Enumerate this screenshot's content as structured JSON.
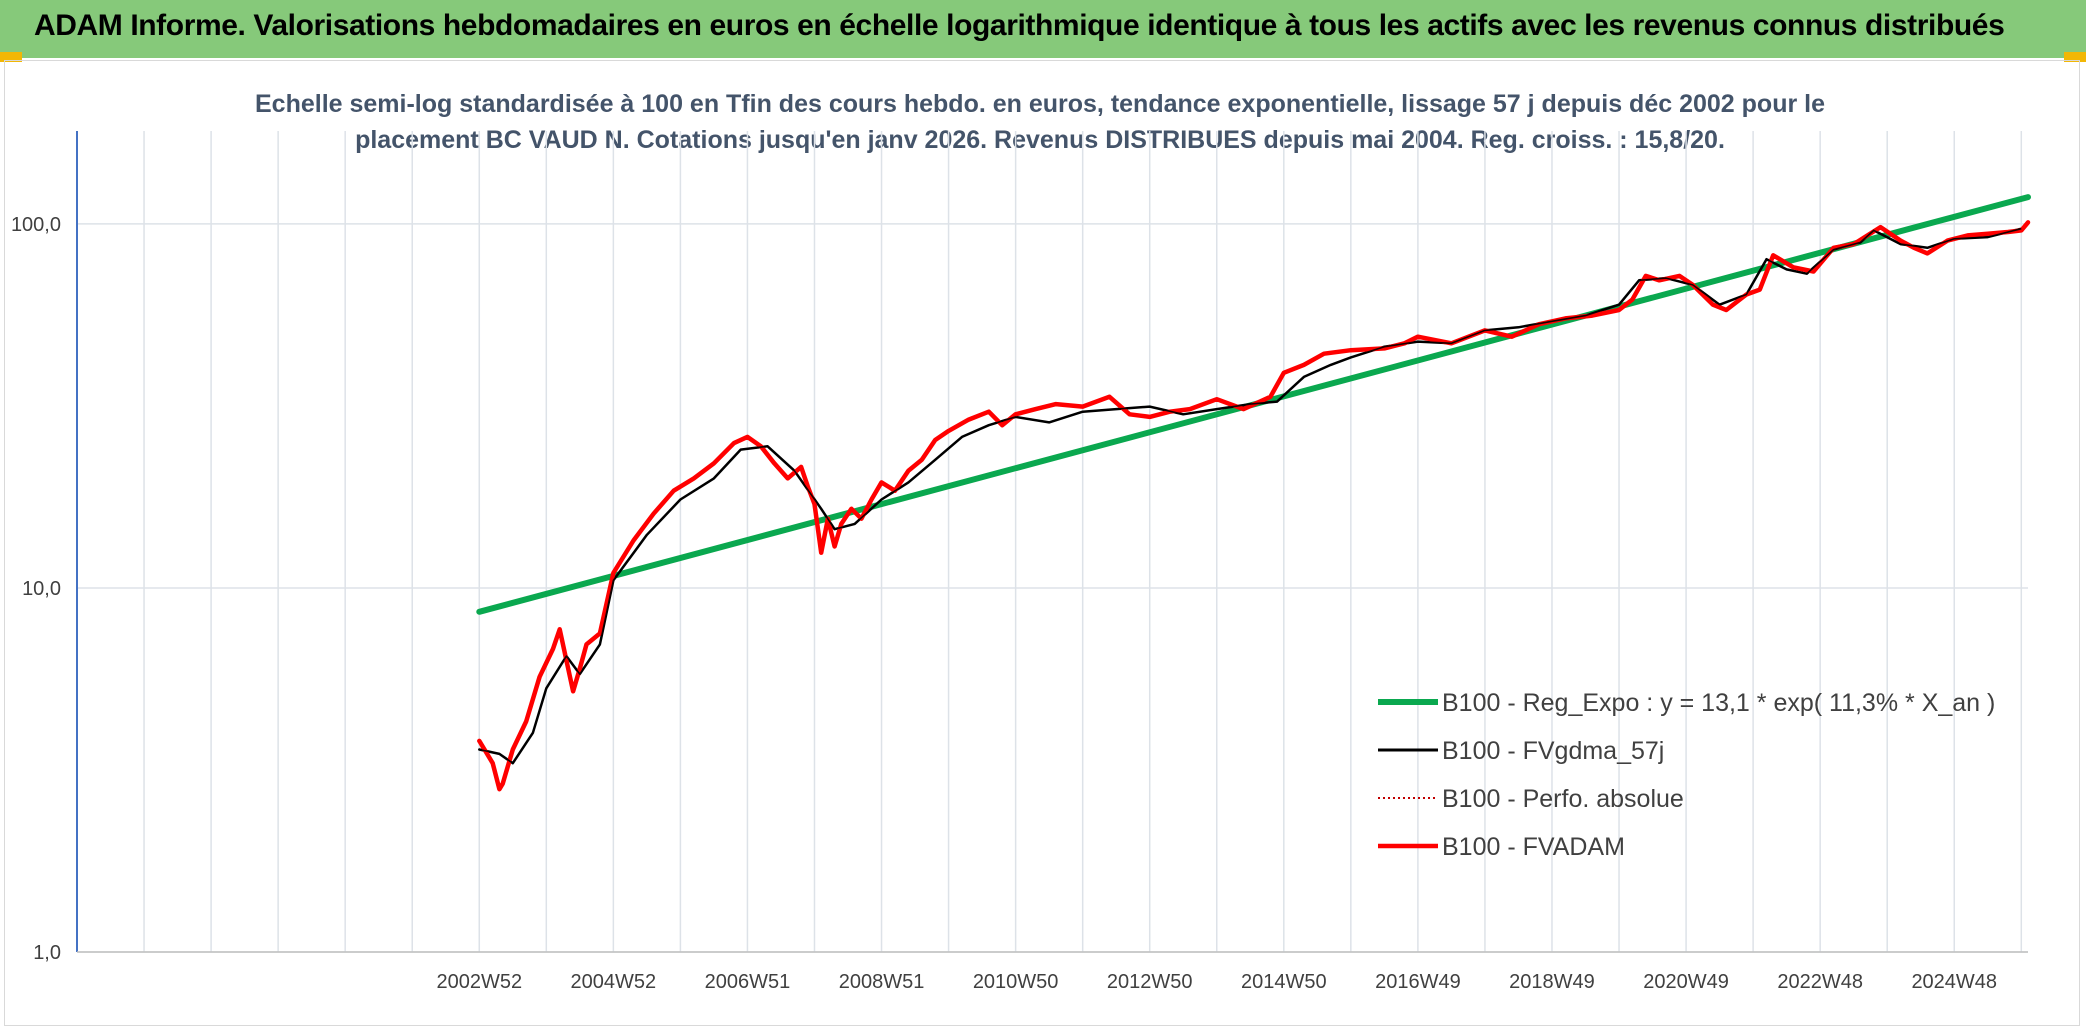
{
  "header": {
    "title": "ADAM Informe. Valorisations hebdomadaires en euros en échelle logarithmique identique à tous les actifs avec les revenus connus distribués"
  },
  "colors": {
    "header_bg": "#86c97a",
    "corner_accent": "#f2b705",
    "reg_expo": "#0aa84f",
    "fvgdma": "#000000",
    "perfo": "#c00000",
    "fvadam": "#ff0000",
    "grid": "#dde2e8",
    "y_axis": "#4472c4"
  },
  "chart_data": {
    "type": "line",
    "title_line1": "Echelle semi-log standardisée à 100 en Tfin des cours hebdo. en euros, tendance exponentielle, lissage 57 j depuis déc 2002 pour le",
    "title_line2": "placement BC VAUD N. Cotations jusqu'en janv 2026. Revenus DISTRIBUES depuis mai 2004. Reg. croiss. : 15,8/20.",
    "y_scale": "log",
    "ylim": [
      1,
      180
    ],
    "xlim": [
      1997,
      2026.1
    ],
    "y_ticks": [
      1,
      10,
      100
    ],
    "y_tick_labels": [
      "1,0",
      "10,0",
      "100,0"
    ],
    "x_ticks": [
      2003,
      2005,
      2007,
      2009,
      2011,
      2013,
      2015,
      2017,
      2019,
      2021,
      2023,
      2025
    ],
    "x_tick_labels": [
      "2002W52",
      "2004W52",
      "2006W51",
      "2008W51",
      "2010W50",
      "2012W50",
      "2014W50",
      "2016W49",
      "2018W49",
      "2020W49",
      "2022W48",
      "2024W48"
    ],
    "grid": true,
    "legend_position": "bottom-right",
    "series": [
      {
        "name": "B100 - Reg_Expo : y = 13,1 * exp( 11,3% *  X_an )",
        "style": "thick-solid",
        "x": [
          2003,
          2026.1
        ],
        "values": [
          8.6,
          118.5
        ]
      },
      {
        "name": "B100 - FVgdma_57j",
        "style": "solid",
        "x": [
          2003,
          2003.3,
          2003.5,
          2003.8,
          2004.0,
          2004.3,
          2004.5,
          2004.8,
          2005.0,
          2005.5,
          2006.0,
          2006.5,
          2006.9,
          2007.3,
          2007.7,
          2008.1,
          2008.3,
          2008.6,
          2009.0,
          2009.4,
          2009.8,
          2010.2,
          2010.6,
          2011.0,
          2011.5,
          2012.0,
          2012.5,
          2013.0,
          2013.5,
          2014.0,
          2014.5,
          2014.9,
          2015.3,
          2015.7,
          2016.0,
          2016.5,
          2017.0,
          2017.5,
          2018.0,
          2018.5,
          2019.0,
          2019.5,
          2020.0,
          2020.3,
          2020.7,
          2021.1,
          2021.5,
          2021.9,
          2022.2,
          2022.5,
          2022.8,
          2023.2,
          2023.6,
          2023.8,
          2024.2,
          2024.6,
          2025.0,
          2025.5,
          2026.0
        ],
        "values": [
          3.6,
          3.5,
          3.3,
          4.0,
          5.3,
          6.5,
          5.8,
          7.0,
          10.5,
          14.0,
          17.5,
          20.0,
          24.0,
          24.5,
          21.0,
          16.5,
          14.5,
          15.0,
          17.5,
          19.5,
          22.5,
          26.0,
          28.0,
          29.5,
          28.5,
          30.5,
          31.0,
          31.5,
          30.0,
          31.0,
          32.0,
          32.5,
          38.0,
          41.0,
          43.0,
          46.0,
          47.5,
          47.0,
          51.0,
          52.0,
          54.0,
          56.0,
          60.0,
          70.0,
          71.0,
          68.0,
          60.0,
          64.0,
          80.0,
          75.0,
          73.0,
          85.0,
          89.0,
          96.0,
          88.0,
          86.0,
          91.0,
          92.0,
          97.0
        ]
      },
      {
        "name": "B100 - Perfo. absolue",
        "style": "dotted"
      },
      {
        "name": "B100 - FVADAM",
        "style": "thick-solid",
        "x": [
          2003,
          2003.2,
          2003.3,
          2003.35,
          2003.5,
          2003.7,
          2003.9,
          2004.1,
          2004.2,
          2004.4,
          2004.5,
          2004.6,
          2004.8,
          2005.0,
          2005.3,
          2005.6,
          2005.9,
          2006.2,
          2006.5,
          2006.8,
          2007.0,
          2007.2,
          2007.4,
          2007.6,
          2007.8,
          2007.9,
          2008.0,
          2008.1,
          2008.2,
          2008.3,
          2008.4,
          2008.55,
          2008.7,
          2008.85,
          2009.0,
          2009.2,
          2009.4,
          2009.6,
          2009.8,
          2010.0,
          2010.3,
          2010.6,
          2010.8,
          2011.0,
          2011.3,
          2011.6,
          2012.0,
          2012.4,
          2012.7,
          2013.0,
          2013.3,
          2013.6,
          2014.0,
          2014.4,
          2014.8,
          2015.0,
          2015.3,
          2015.6,
          2016.0,
          2016.5,
          2016.8,
          2017.0,
          2017.5,
          2018.0,
          2018.4,
          2018.8,
          2019.2,
          2019.6,
          2020.0,
          2020.2,
          2020.4,
          2020.6,
          2020.9,
          2021.1,
          2021.4,
          2021.6,
          2021.9,
          2022.1,
          2022.3,
          2022.6,
          2022.9,
          2023.2,
          2023.5,
          2023.9,
          2024.2,
          2024.4,
          2024.6,
          2024.9,
          2025.2,
          2025.5,
          2025.8,
          2026.0,
          2026.1
        ],
        "values": [
          3.8,
          3.3,
          2.8,
          2.9,
          3.6,
          4.3,
          5.7,
          6.8,
          7.7,
          5.2,
          6.0,
          7.0,
          7.5,
          11.0,
          13.5,
          16.0,
          18.5,
          20.0,
          22.0,
          25.0,
          26.0,
          24.5,
          22.0,
          20.0,
          21.5,
          19.0,
          17.0,
          12.5,
          15.5,
          13.0,
          15.0,
          16.5,
          15.5,
          17.5,
          19.5,
          18.5,
          21.0,
          22.5,
          25.5,
          27.0,
          29.0,
          30.5,
          28.0,
          30.0,
          31.0,
          32.0,
          31.5,
          33.5,
          30.0,
          29.5,
          30.5,
          31.0,
          33.0,
          31.0,
          33.5,
          39.0,
          41.0,
          44.0,
          45.0,
          45.5,
          47.0,
          49.0,
          47.0,
          51.0,
          49.0,
          53.0,
          55.0,
          56.0,
          58.0,
          62.0,
          72.0,
          70.0,
          72.0,
          68.0,
          60.0,
          58.0,
          64.0,
          66.0,
          82.0,
          76.0,
          74.0,
          86.0,
          88.0,
          98.0,
          90.0,
          86.0,
          83.0,
          90.0,
          93.0,
          94.0,
          95.0,
          96.0,
          101.0
        ]
      }
    ]
  }
}
